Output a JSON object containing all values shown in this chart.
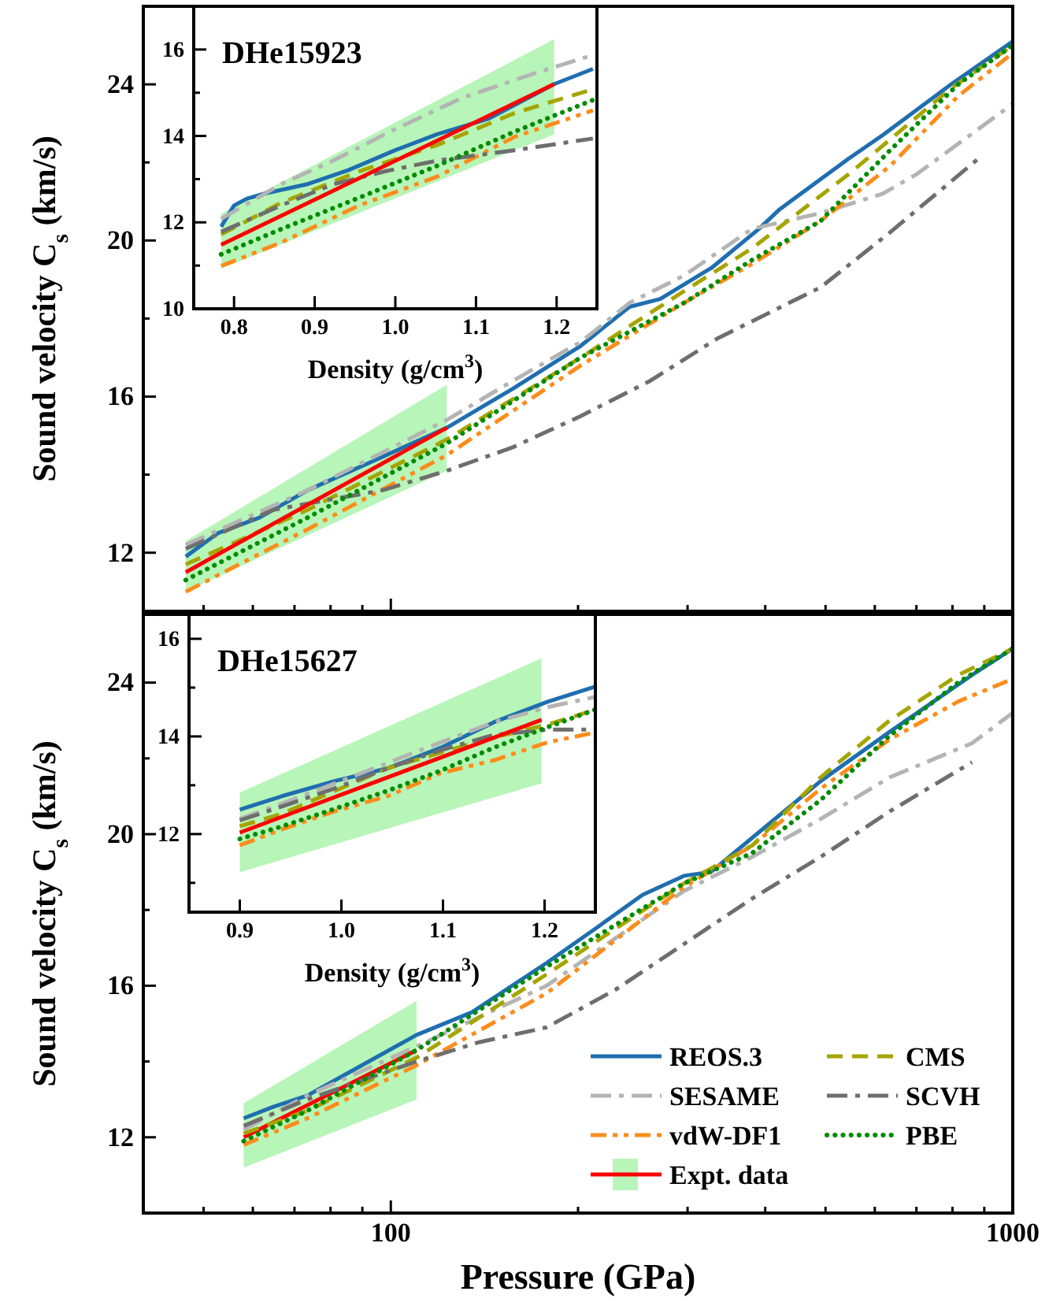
{
  "chart_data": [
    {
      "type": "line",
      "ylabel": "Sound velocity C$_{s}$ (km/s)",
      "log": "x",
      "xlim": [
        40,
        1000
      ],
      "ylim": [
        10.5,
        26
      ],
      "tick_labels": "y",
      "legend": false,
      "xticks": [
        {
          "value": 50,
          "label": null
        },
        {
          "value": 60,
          "label": null
        },
        {
          "value": 70,
          "label": null
        },
        {
          "value": 80,
          "label": null
        },
        {
          "value": 90,
          "label": null
        },
        {
          "value": 100,
          "label": null
        },
        {
          "value": 200,
          "label": null
        },
        {
          "value": 300,
          "label": null
        },
        {
          "value": 400,
          "label": null
        },
        {
          "value": 500,
          "label": null
        },
        {
          "value": 600,
          "label": null
        },
        {
          "value": 700,
          "label": null
        },
        {
          "value": 800,
          "label": null
        },
        {
          "value": 900,
          "label": null
        },
        {
          "value": 1000,
          "label": null
        }
      ],
      "yticks": [
        12,
        {
          "value": 14,
          "label": null
        },
        16,
        {
          "value": 18,
          "label": null
        },
        20,
        {
          "value": 22,
          "label": null
        },
        24
      ],
      "series": [
        {
          "color": "#1f6eb0",
          "line_style": "solid",
          "x": [
            46.8,
            52.7,
            61.5,
            73.5,
            92.2,
            123,
            157,
            202,
            242,
            271,
            328,
            391,
            422,
            545,
            618,
            796,
            1000
          ],
          "values": [
            11.9,
            12.5,
            12.9,
            13.6,
            14.3,
            15.2,
            16.2,
            17.3,
            18.3,
            18.5,
            19.3,
            20.3,
            20.8,
            22.1,
            22.7,
            24.0,
            25.1
          ]
        },
        {
          "color": "#b4b4b4",
          "line_style": "dashdot",
          "x": [
            46.8,
            73.5,
            123,
            157,
            202,
            242,
            296,
            381,
            491,
            618,
            701,
            1000
          ],
          "values": [
            12.2,
            13.6,
            15.4,
            16.4,
            17.4,
            18.4,
            19.1,
            20.3,
            20.7,
            21.2,
            21.7,
            23.5
          ]
        },
        {
          "color": "#ff8c1a",
          "line_style": "dashdotdot",
          "x": [
            46.8,
            73.5,
            123,
            202,
            296,
            381,
            491,
            634,
            817,
            1000
          ],
          "values": [
            11.0,
            12.6,
            14.5,
            16.8,
            18.4,
            19.4,
            20.5,
            21.9,
            23.7,
            24.8
          ]
        },
        {
          "color": "#a5a500",
          "line_style": "dashed",
          "x": [
            46.8,
            73.5,
            123,
            202,
            296,
            381,
            545,
            796,
            1000
          ],
          "values": [
            11.7,
            13.1,
            14.9,
            17.0,
            18.7,
            19.8,
            21.7,
            23.9,
            25.0
          ]
        },
        {
          "color": "#6e6e6e",
          "line_style": "dashdot",
          "x": [
            46.8,
            64.7,
            97,
            123,
            157,
            202,
            261,
            336,
            491,
            634,
            881
          ],
          "values": [
            12.1,
            13.1,
            13.6,
            14.1,
            14.7,
            15.5,
            16.4,
            17.5,
            18.8,
            20.2,
            22.1
          ]
        },
        {
          "color": "#008c00",
          "line_style": "dotted",
          "x": [
            46.8,
            73.5,
            123,
            202,
            296,
            381,
            491,
            634,
            817,
            1000
          ],
          "values": [
            11.3,
            12.9,
            14.8,
            17.0,
            18.4,
            19.5,
            20.5,
            22.3,
            24.0,
            25.0
          ]
        },
        {
          "color": "#ff0000",
          "line_style": "solid",
          "x": [
            46.8,
            123
          ],
          "values": [
            11.5,
            15.2
          ],
          "lower": [
            11.0,
            14.1
          ],
          "upper": [
            12.3,
            16.3
          ]
        }
      ]
    },
    {
      "type": "line",
      "title": "DHe15923",
      "xlabel": "Density (g/cm$^{3}$)",
      "xlim": [
        0.75,
        1.25
      ],
      "ylim": [
        10,
        17
      ],
      "legend": false,
      "xticks": [
        {
          "value": 0.8,
          "label": "0.8"
        },
        {
          "value": 0.9,
          "label": "0.9"
        },
        {
          "value": 1.0,
          "label": "1.0"
        },
        {
          "value": 1.1,
          "label": "1.1"
        },
        {
          "value": 1.2,
          "label": "1.2"
        }
      ],
      "yticks": [
        10,
        {
          "value": 11,
          "label": null
        },
        12,
        {
          "value": 13,
          "label": null
        },
        14,
        {
          "value": 15,
          "label": null
        },
        16
      ],
      "series": [
        {
          "color": "#1f6eb0",
          "line_style": "solid",
          "x": [
            0.784,
            0.8,
            0.816,
            0.839,
            0.89,
            0.942,
            1.0,
            1.052,
            1.116,
            1.197,
            1.245
          ],
          "values": [
            11.9,
            12.39,
            12.55,
            12.67,
            12.88,
            13.21,
            13.67,
            14.04,
            14.4,
            15.2,
            15.55
          ]
        },
        {
          "color": "#b4b4b4",
          "line_style": "dashdot",
          "x": [
            0.784,
            0.858,
            0.923,
            1.0,
            1.084,
            1.181,
            1.245
          ],
          "values": [
            12.08,
            12.88,
            13.43,
            14.16,
            14.89,
            15.5,
            15.87
          ]
        },
        {
          "color": "#ff8c1a",
          "line_style": "dashdotdot",
          "x": [
            0.784,
            0.858,
            0.955,
            1.052,
            1.148,
            1.245
          ],
          "values": [
            10.99,
            11.53,
            12.39,
            13.06,
            13.98,
            14.59
          ]
        },
        {
          "color": "#a5a500",
          "line_style": "dashed",
          "x": [
            0.784,
            0.858,
            0.955,
            1.052,
            1.148,
            1.245
          ],
          "values": [
            11.72,
            12.45,
            13.18,
            13.79,
            14.53,
            15.08
          ]
        },
        {
          "color": "#6e6e6e",
          "line_style": "dashdot",
          "x": [
            0.784,
            0.858,
            0.923,
            0.987,
            1.052,
            1.148,
            1.245
          ],
          "values": [
            11.78,
            12.39,
            12.88,
            13.18,
            13.43,
            13.67,
            13.94
          ]
        },
        {
          "color": "#008c00",
          "line_style": "dotted",
          "x": [
            0.784,
            0.858,
            0.955,
            1.052,
            1.148,
            1.245
          ],
          "values": [
            11.26,
            11.84,
            12.57,
            13.31,
            14.1,
            14.83
          ]
        },
        {
          "color": "#ff0000",
          "line_style": "solid",
          "x": [
            0.784,
            1.197
          ],
          "values": [
            11.48,
            15.2
          ],
          "lower": [
            10.93,
            14.04
          ],
          "upper": [
            12.2,
            16.24
          ]
        }
      ]
    },
    {
      "type": "line",
      "xlabel": "Pressure (GPa)",
      "ylabel": "Sound velocity C$_{s}$ (km/s)",
      "log": "x",
      "xlim": [
        40,
        1000
      ],
      "ylim": [
        10,
        25.8
      ],
      "legend": "bottom right",
      "xticks": [
        {
          "value": 50,
          "label": null
        },
        {
          "value": 60,
          "label": null
        },
        {
          "value": 70,
          "label": null
        },
        {
          "value": 80,
          "label": null
        },
        {
          "value": 90,
          "label": null
        },
        {
          "value": 100,
          "label": "100"
        },
        {
          "value": 200,
          "label": null
        },
        {
          "value": 300,
          "label": null
        },
        {
          "value": 400,
          "label": null
        },
        {
          "value": 500,
          "label": null
        },
        {
          "value": 600,
          "label": null
        },
        {
          "value": 700,
          "label": null
        },
        {
          "value": 800,
          "label": null
        },
        {
          "value": 900,
          "label": null
        },
        {
          "value": 1000,
          "label": "1000"
        }
      ],
      "yticks": [
        12,
        {
          "value": 14,
          "label": null
        },
        16,
        {
          "value": 18,
          "label": null
        },
        20,
        {
          "value": 22,
          "label": null
        },
        24
      ],
      "series": [
        {
          "name": "REOS.3",
          "color": "#1f6eb0",
          "line_style": "solid",
          "x": [
            58,
            64.6,
            73.4,
            87.6,
            110,
            135,
            178,
            213,
            254,
            296,
            327,
            381,
            491,
            634,
            860,
            1000
          ],
          "values": [
            12.5,
            12.8,
            13.1,
            13.8,
            14.7,
            15.3,
            16.6,
            17.5,
            18.4,
            18.9,
            19.0,
            19.9,
            21.4,
            22.7,
            24.2,
            24.9
          ]
        },
        {
          "name": "SESAME",
          "color": "#b4b4b4",
          "line_style": "dashdot",
          "x": [
            58,
            73.4,
            110,
            178,
            296,
            381,
            491,
            634,
            860,
            1000
          ],
          "values": [
            12.2,
            13.1,
            14.4,
            16.0,
            18.5,
            19.4,
            20.4,
            21.5,
            22.4,
            23.2
          ]
        },
        {
          "name": "vdW-DF1",
          "color": "#ff8c1a",
          "line_style": "dashdotdot",
          "x": [
            58,
            73.4,
            110,
            178,
            296,
            381,
            491,
            634,
            817,
            1000
          ],
          "values": [
            11.8,
            12.5,
            13.9,
            15.8,
            18.6,
            19.7,
            21.2,
            22.5,
            23.5,
            24.1
          ]
        },
        {
          "name": "Expt. data",
          "color": "#ff0000",
          "line_style": "solid",
          "x": [
            58,
            110
          ],
          "values": [
            12.0,
            14.3
          ],
          "lower": [
            11.2,
            13.0
          ],
          "upper": [
            12.9,
            15.6
          ]
        },
        {
          "name": "CMS",
          "color": "#a5a500",
          "line_style": "dashed",
          "x": [
            58,
            73.4,
            110,
            178,
            296,
            381,
            491,
            634,
            817,
            1000
          ],
          "values": [
            12.1,
            12.7,
            14.1,
            16.3,
            18.7,
            19.7,
            21.5,
            23.0,
            24.2,
            24.9
          ]
        },
        {
          "name": "SCVH",
          "color": "#6e6e6e",
          "line_style": "dashdot",
          "x": [
            58,
            73.4,
            110,
            138,
            178,
            230,
            296,
            381,
            491,
            634,
            860
          ],
          "values": [
            12.3,
            13.0,
            14.0,
            14.5,
            14.9,
            15.9,
            17.1,
            18.3,
            19.4,
            20.6,
            21.9
          ]
        },
        {
          "name": "PBE",
          "color": "#008c00",
          "line_style": "dotted",
          "x": [
            58,
            73.4,
            110,
            178,
            296,
            381,
            491,
            634,
            817,
            1000
          ],
          "values": [
            11.9,
            12.7,
            14.3,
            16.5,
            18.7,
            19.5,
            20.9,
            22.6,
            24.0,
            24.9
          ]
        }
      ]
    },
    {
      "type": "line",
      "title": "DHe15627",
      "xlabel": "Density (g/cm$^{3}$)",
      "xlim": [
        0.85,
        1.25
      ],
      "ylim": [
        10.4,
        16.5
      ],
      "legend": false,
      "xticks": [
        {
          "value": 0.9,
          "label": "0.9"
        },
        {
          "value": 1.0,
          "label": "1.0"
        },
        {
          "value": 1.1,
          "label": "1.1"
        },
        {
          "value": 1.2,
          "label": "1.2"
        }
      ],
      "yticks": [
        {
          "value": 11,
          "label": null
        },
        12,
        {
          "value": 13,
          "label": null
        },
        14,
        {
          "value": 15,
          "label": null
        },
        16
      ],
      "series": [
        {
          "color": "#1f6eb0",
          "line_style": "solid",
          "x": [
            0.9,
            0.942,
            0.994,
            1.046,
            1.098,
            1.15,
            1.203,
            1.25
          ],
          "values": [
            12.5,
            12.78,
            13.09,
            13.35,
            13.77,
            14.29,
            14.71,
            15.02
          ]
        },
        {
          "color": "#b4b4b4",
          "line_style": "dashdot",
          "x": [
            0.9,
            0.942,
            0.994,
            1.046,
            1.098,
            1.15,
            1.203,
            1.25
          ],
          "values": [
            12.31,
            12.63,
            13.04,
            13.46,
            13.88,
            14.29,
            14.6,
            14.81
          ]
        },
        {
          "color": "#ff8c1a",
          "line_style": "dashdotdot",
          "x": [
            0.9,
            0.942,
            0.994,
            1.046,
            1.098,
            1.15,
            1.203,
            1.25
          ],
          "values": [
            11.77,
            12.1,
            12.47,
            12.78,
            13.25,
            13.51,
            13.88,
            14.08
          ]
        },
        {
          "color": "#a5a500",
          "line_style": "dashed",
          "x": [
            0.9,
            0.942,
            0.994,
            1.046,
            1.098,
            1.15,
            1.203,
            1.25
          ],
          "values": [
            12.16,
            12.42,
            12.89,
            13.35,
            13.67,
            13.98,
            14.24,
            14.55
          ]
        },
        {
          "color": "#6e6e6e",
          "line_style": "dashdot",
          "x": [
            0.9,
            0.942,
            0.994,
            1.046,
            1.098,
            1.15,
            1.203,
            1.25
          ],
          "values": [
            12.28,
            12.57,
            12.94,
            13.35,
            13.72,
            14.03,
            14.14,
            14.14
          ]
        },
        {
          "color": "#008c00",
          "line_style": "dotted",
          "x": [
            0.9,
            0.942,
            0.994,
            1.046,
            1.098,
            1.15,
            1.203,
            1.25
          ],
          "values": [
            11.9,
            12.16,
            12.52,
            12.89,
            13.3,
            13.77,
            14.19,
            14.55
          ]
        },
        {
          "color": "#ff0000",
          "line_style": "solid",
          "x": [
            0.9,
            1.197
          ],
          "values": [
            12.03,
            14.34
          ],
          "lower": [
            11.22,
            13.04
          ],
          "upper": [
            12.85,
            15.6
          ]
        }
      ]
    }
  ]
}
